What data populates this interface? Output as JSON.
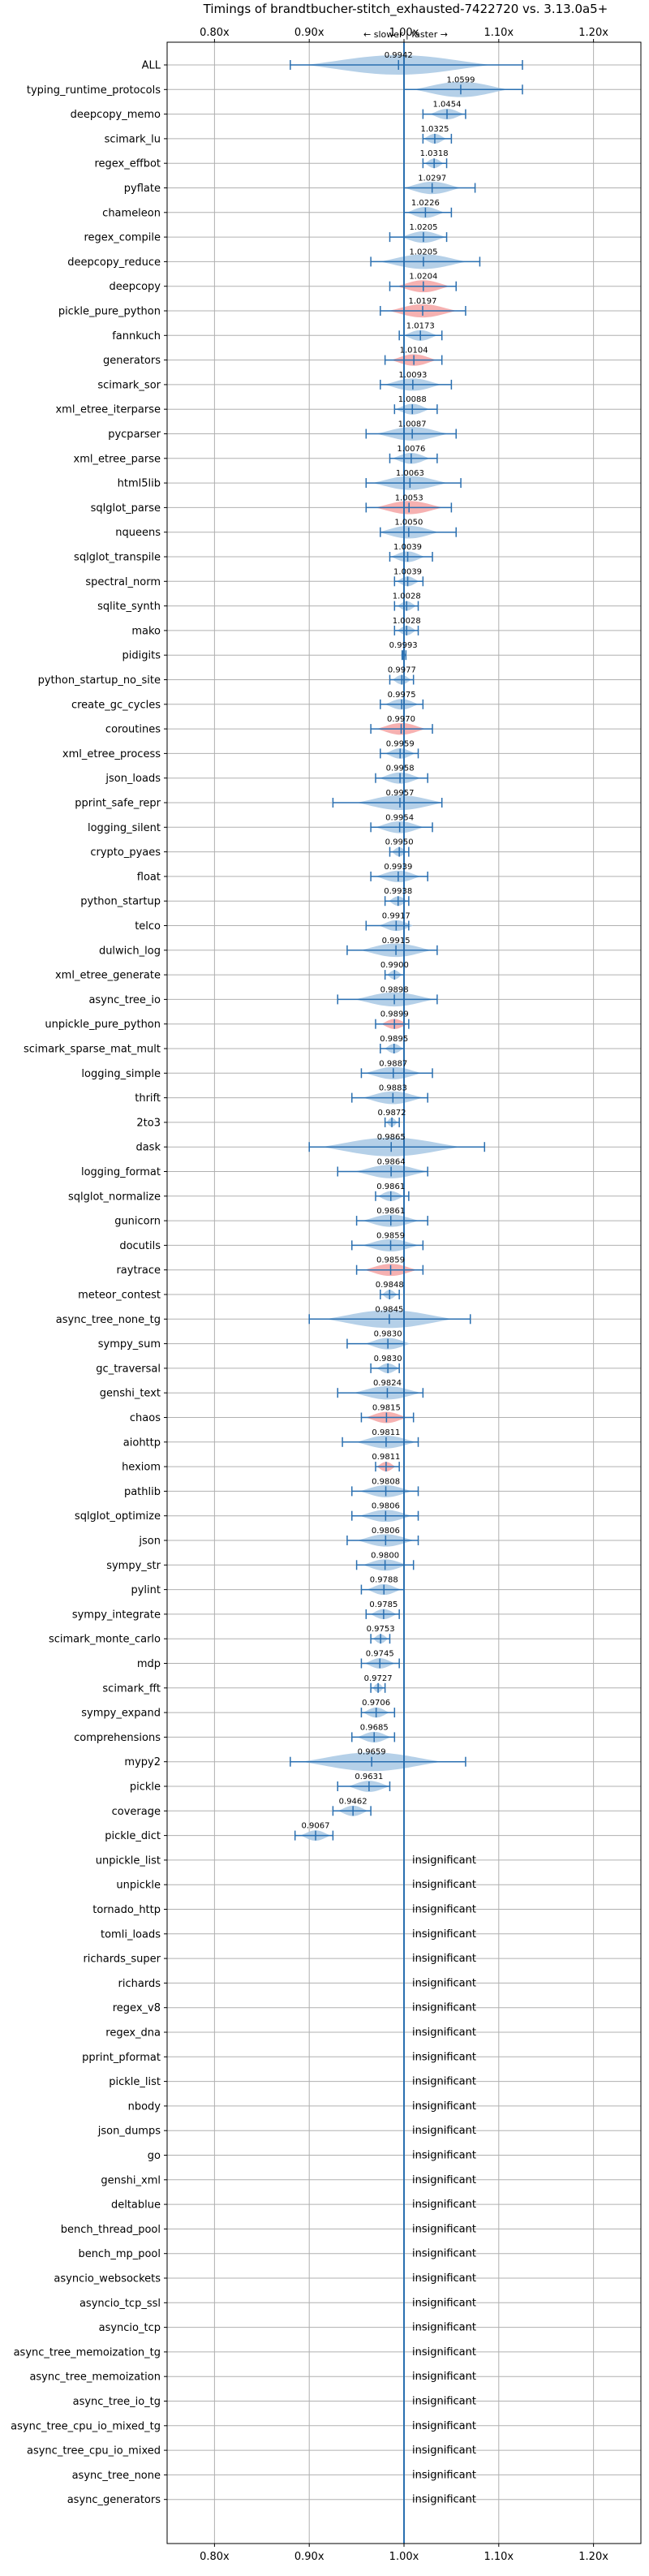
{
  "chart_data": {
    "type": "violin",
    "title": "Timings of brandtbucher-stitch_exhausted-7422720 vs. 3.13.0a5+",
    "direction_note": "← slower | faster →",
    "x_ticks": [
      "0.80x",
      "0.90x",
      "1.00x",
      "1.10x",
      "1.20x"
    ],
    "x_tick_values": [
      0.8,
      0.9,
      1.0,
      1.1,
      1.2
    ],
    "xlim": [
      0.75,
      1.25
    ],
    "reference_line": 1.0,
    "grid": true,
    "colors": {
      "faster": "#a8c8e4",
      "slower": "#f4a3a3",
      "errorbar": "#2a6fb0",
      "axis": "#000000",
      "grid": "#b0b0b0"
    },
    "insignificant_label": "insignificant",
    "benchmarks": [
      {
        "name": "ALL",
        "value": 0.9942,
        "label": "0.9942",
        "low": 0.88,
        "high": 1.125,
        "color": "blue"
      },
      {
        "name": "typing_runtime_protocols",
        "value": 1.0599,
        "label": "1.0599",
        "low": 1.0,
        "high": 1.125,
        "color": "blue"
      },
      {
        "name": "deepcopy_memo",
        "value": 1.0454,
        "label": "1.0454",
        "low": 1.02,
        "high": 1.065,
        "color": "blue"
      },
      {
        "name": "scimark_lu",
        "value": 1.0325,
        "label": "1.0325",
        "low": 1.02,
        "high": 1.05,
        "color": "blue"
      },
      {
        "name": "regex_effbot",
        "value": 1.0318,
        "label": "1.0318",
        "low": 1.02,
        "high": 1.045,
        "color": "blue"
      },
      {
        "name": "pyflate",
        "value": 1.0297,
        "label": "1.0297",
        "low": 1.0,
        "high": 1.075,
        "color": "blue"
      },
      {
        "name": "chameleon",
        "value": 1.0226,
        "label": "1.0226",
        "low": 1.0,
        "high": 1.05,
        "color": "blue"
      },
      {
        "name": "regex_compile",
        "value": 1.0205,
        "label": "1.0205",
        "low": 0.985,
        "high": 1.045,
        "color": "blue"
      },
      {
        "name": "deepcopy_reduce",
        "value": 1.0205,
        "label": "1.0205",
        "low": 0.965,
        "high": 1.08,
        "color": "blue"
      },
      {
        "name": "deepcopy",
        "value": 1.0204,
        "label": "1.0204",
        "low": 0.985,
        "high": 1.055,
        "color": "red"
      },
      {
        "name": "pickle_pure_python",
        "value": 1.0197,
        "label": "1.0197",
        "low": 0.975,
        "high": 1.065,
        "color": "red"
      },
      {
        "name": "fannkuch",
        "value": 1.0173,
        "label": "1.0173",
        "low": 0.995,
        "high": 1.04,
        "color": "blue"
      },
      {
        "name": "generators",
        "value": 1.0104,
        "label": "1.0104",
        "low": 0.98,
        "high": 1.04,
        "color": "red"
      },
      {
        "name": "scimark_sor",
        "value": 1.0093,
        "label": "1.0093",
        "low": 0.975,
        "high": 1.05,
        "color": "blue"
      },
      {
        "name": "xml_etree_iterparse",
        "value": 1.0088,
        "label": "1.0088",
        "low": 0.99,
        "high": 1.035,
        "color": "blue"
      },
      {
        "name": "pycparser",
        "value": 1.0087,
        "label": "1.0087",
        "low": 0.96,
        "high": 1.055,
        "color": "blue"
      },
      {
        "name": "xml_etree_parse",
        "value": 1.0076,
        "label": "1.0076",
        "low": 0.985,
        "high": 1.035,
        "color": "blue"
      },
      {
        "name": "html5lib",
        "value": 1.0063,
        "label": "1.0063",
        "low": 0.96,
        "high": 1.06,
        "color": "blue"
      },
      {
        "name": "sqlglot_parse",
        "value": 1.0053,
        "label": "1.0053",
        "low": 0.96,
        "high": 1.05,
        "color": "red"
      },
      {
        "name": "nqueens",
        "value": 1.005,
        "label": "1.0050",
        "low": 0.975,
        "high": 1.055,
        "color": "blue"
      },
      {
        "name": "sqlglot_transpile",
        "value": 1.0039,
        "label": "1.0039",
        "low": 0.985,
        "high": 1.03,
        "color": "blue"
      },
      {
        "name": "spectral_norm",
        "value": 1.0039,
        "label": "1.0039",
        "low": 0.99,
        "high": 1.02,
        "color": "blue"
      },
      {
        "name": "sqlite_synth",
        "value": 1.0028,
        "label": "1.0028",
        "low": 0.99,
        "high": 1.015,
        "color": "blue"
      },
      {
        "name": "mako",
        "value": 1.0028,
        "label": "1.0028",
        "low": 0.99,
        "high": 1.015,
        "color": "blue"
      },
      {
        "name": "pidigits",
        "value": 0.9993,
        "label": "0.9993",
        "low": 0.998,
        "high": 1.002,
        "color": "blue"
      },
      {
        "name": "python_startup_no_site",
        "value": 0.9977,
        "label": "0.9977",
        "low": 0.985,
        "high": 1.01,
        "color": "blue"
      },
      {
        "name": "create_gc_cycles",
        "value": 0.9975,
        "label": "0.9975",
        "low": 0.975,
        "high": 1.02,
        "color": "blue"
      },
      {
        "name": "coroutines",
        "value": 0.997,
        "label": "0.9970",
        "low": 0.965,
        "high": 1.03,
        "color": "red"
      },
      {
        "name": "xml_etree_process",
        "value": 0.9959,
        "label": "0.9959",
        "low": 0.975,
        "high": 1.015,
        "color": "blue"
      },
      {
        "name": "json_loads",
        "value": 0.9958,
        "label": "0.9958",
        "low": 0.97,
        "high": 1.025,
        "color": "blue"
      },
      {
        "name": "pprint_safe_repr",
        "value": 0.9957,
        "label": "0.9957",
        "low": 0.925,
        "high": 1.04,
        "color": "blue"
      },
      {
        "name": "logging_silent",
        "value": 0.9954,
        "label": "0.9954",
        "low": 0.965,
        "high": 1.03,
        "color": "blue"
      },
      {
        "name": "crypto_pyaes",
        "value": 0.995,
        "label": "0.9950",
        "low": 0.985,
        "high": 1.005,
        "color": "blue"
      },
      {
        "name": "float",
        "value": 0.9939,
        "label": "0.9939",
        "low": 0.965,
        "high": 1.025,
        "color": "blue"
      },
      {
        "name": "python_startup",
        "value": 0.9938,
        "label": "0.9938",
        "low": 0.98,
        "high": 1.005,
        "color": "blue"
      },
      {
        "name": "telco",
        "value": 0.9917,
        "label": "0.9917",
        "low": 0.96,
        "high": 1.005,
        "color": "blue"
      },
      {
        "name": "dulwich_log",
        "value": 0.9915,
        "label": "0.9915",
        "low": 0.94,
        "high": 1.035,
        "color": "blue"
      },
      {
        "name": "xml_etree_generate",
        "value": 0.99,
        "label": "0.9900",
        "low": 0.98,
        "high": 1.0,
        "color": "blue"
      },
      {
        "name": "async_tree_io",
        "value": 0.9898,
        "label": "0.9898",
        "low": 0.93,
        "high": 1.035,
        "color": "blue"
      },
      {
        "name": "unpickle_pure_python",
        "value": 0.9899,
        "label": "0.9899",
        "low": 0.97,
        "high": 1.005,
        "color": "red"
      },
      {
        "name": "scimark_sparse_mat_mult",
        "value": 0.9895,
        "label": "0.9895",
        "low": 0.975,
        "high": 1.0,
        "color": "blue"
      },
      {
        "name": "logging_simple",
        "value": 0.9887,
        "label": "0.9887",
        "low": 0.955,
        "high": 1.03,
        "color": "blue"
      },
      {
        "name": "thrift",
        "value": 0.9883,
        "label": "0.9883",
        "low": 0.945,
        "high": 1.025,
        "color": "blue"
      },
      {
        "name": "2to3",
        "value": 0.9872,
        "label": "0.9872",
        "low": 0.98,
        "high": 0.995,
        "color": "blue"
      },
      {
        "name": "dask",
        "value": 0.9865,
        "label": "0.9865",
        "low": 0.9,
        "high": 1.085,
        "color": "blue"
      },
      {
        "name": "logging_format",
        "value": 0.9864,
        "label": "0.9864",
        "low": 0.93,
        "high": 1.025,
        "color": "blue"
      },
      {
        "name": "sqlglot_normalize",
        "value": 0.9861,
        "label": "0.9861",
        "low": 0.97,
        "high": 1.005,
        "color": "blue"
      },
      {
        "name": "gunicorn",
        "value": 0.9861,
        "label": "0.9861",
        "low": 0.95,
        "high": 1.025,
        "color": "blue"
      },
      {
        "name": "docutils",
        "value": 0.9859,
        "label": "0.9859",
        "low": 0.945,
        "high": 1.02,
        "color": "blue"
      },
      {
        "name": "raytrace",
        "value": 0.9859,
        "label": "0.9859",
        "low": 0.95,
        "high": 1.02,
        "color": "red"
      },
      {
        "name": "meteor_contest",
        "value": 0.9848,
        "label": "0.9848",
        "low": 0.975,
        "high": 0.995,
        "color": "blue"
      },
      {
        "name": "async_tree_none_tg",
        "value": 0.9845,
        "label": "0.9845",
        "low": 0.9,
        "high": 1.07,
        "color": "blue"
      },
      {
        "name": "sympy_sum",
        "value": 0.983,
        "label": "0.9830",
        "low": 0.94,
        "high": 1.0,
        "color": "blue"
      },
      {
        "name": "gc_traversal",
        "value": 0.983,
        "label": "0.9830",
        "low": 0.965,
        "high": 0.995,
        "color": "blue"
      },
      {
        "name": "genshi_text",
        "value": 0.9824,
        "label": "0.9824",
        "low": 0.93,
        "high": 1.02,
        "color": "blue"
      },
      {
        "name": "chaos",
        "value": 0.9815,
        "label": "0.9815",
        "low": 0.955,
        "high": 1.01,
        "color": "red"
      },
      {
        "name": "aiohttp",
        "value": 0.9811,
        "label": "0.9811",
        "low": 0.935,
        "high": 1.015,
        "color": "blue"
      },
      {
        "name": "hexiom",
        "value": 0.9811,
        "label": "0.9811",
        "low": 0.97,
        "high": 0.995,
        "color": "red"
      },
      {
        "name": "pathlib",
        "value": 0.9808,
        "label": "0.9808",
        "low": 0.945,
        "high": 1.015,
        "color": "blue"
      },
      {
        "name": "sqlglot_optimize",
        "value": 0.9806,
        "label": "0.9806",
        "low": 0.945,
        "high": 1.015,
        "color": "blue"
      },
      {
        "name": "json",
        "value": 0.9806,
        "label": "0.9806",
        "low": 0.94,
        "high": 1.015,
        "color": "blue"
      },
      {
        "name": "sympy_str",
        "value": 0.98,
        "label": "0.9800",
        "low": 0.95,
        "high": 1.01,
        "color": "blue"
      },
      {
        "name": "pylint",
        "value": 0.9788,
        "label": "0.9788",
        "low": 0.955,
        "high": 1.0,
        "color": "blue"
      },
      {
        "name": "sympy_integrate",
        "value": 0.9785,
        "label": "0.9785",
        "low": 0.96,
        "high": 0.995,
        "color": "blue"
      },
      {
        "name": "scimark_monte_carlo",
        "value": 0.9753,
        "label": "0.9753",
        "low": 0.965,
        "high": 0.985,
        "color": "blue"
      },
      {
        "name": "mdp",
        "value": 0.9745,
        "label": "0.9745",
        "low": 0.955,
        "high": 0.995,
        "color": "blue"
      },
      {
        "name": "scimark_fft",
        "value": 0.9727,
        "label": "0.9727",
        "low": 0.965,
        "high": 0.98,
        "color": "blue"
      },
      {
        "name": "sympy_expand",
        "value": 0.9706,
        "label": "0.9706",
        "low": 0.955,
        "high": 0.99,
        "color": "blue"
      },
      {
        "name": "comprehensions",
        "value": 0.9685,
        "label": "0.9685",
        "low": 0.945,
        "high": 0.99,
        "color": "blue"
      },
      {
        "name": "mypy2",
        "value": 0.9659,
        "label": "0.9659",
        "low": 0.88,
        "high": 1.065,
        "color": "blue"
      },
      {
        "name": "pickle",
        "value": 0.9631,
        "label": "0.9631",
        "low": 0.93,
        "high": 0.985,
        "color": "blue"
      },
      {
        "name": "coverage",
        "value": 0.9462,
        "label": "0.9462",
        "low": 0.925,
        "high": 0.965,
        "color": "blue"
      },
      {
        "name": "pickle_dict",
        "value": 0.9067,
        "label": "0.9067",
        "low": 0.885,
        "high": 0.925,
        "color": "blue"
      },
      {
        "name": "unpickle_list",
        "insignificant": true
      },
      {
        "name": "unpickle",
        "insignificant": true
      },
      {
        "name": "tornado_http",
        "insignificant": true
      },
      {
        "name": "tomli_loads",
        "insignificant": true
      },
      {
        "name": "richards_super",
        "insignificant": true
      },
      {
        "name": "richards",
        "insignificant": true
      },
      {
        "name": "regex_v8",
        "insignificant": true
      },
      {
        "name": "regex_dna",
        "insignificant": true
      },
      {
        "name": "pprint_pformat",
        "insignificant": true
      },
      {
        "name": "pickle_list",
        "insignificant": true
      },
      {
        "name": "nbody",
        "insignificant": true
      },
      {
        "name": "json_dumps",
        "insignificant": true
      },
      {
        "name": "go",
        "insignificant": true
      },
      {
        "name": "genshi_xml",
        "insignificant": true
      },
      {
        "name": "deltablue",
        "insignificant": true
      },
      {
        "name": "bench_thread_pool",
        "insignificant": true
      },
      {
        "name": "bench_mp_pool",
        "insignificant": true
      },
      {
        "name": "asyncio_websockets",
        "insignificant": true
      },
      {
        "name": "asyncio_tcp_ssl",
        "insignificant": true
      },
      {
        "name": "asyncio_tcp",
        "insignificant": true
      },
      {
        "name": "async_tree_memoization_tg",
        "insignificant": true
      },
      {
        "name": "async_tree_memoization",
        "insignificant": true
      },
      {
        "name": "async_tree_io_tg",
        "insignificant": true
      },
      {
        "name": "async_tree_cpu_io_mixed_tg",
        "insignificant": true
      },
      {
        "name": "async_tree_cpu_io_mixed",
        "insignificant": true
      },
      {
        "name": "async_tree_none",
        "insignificant": true
      },
      {
        "name": "async_generators",
        "insignificant": true
      }
    ]
  }
}
